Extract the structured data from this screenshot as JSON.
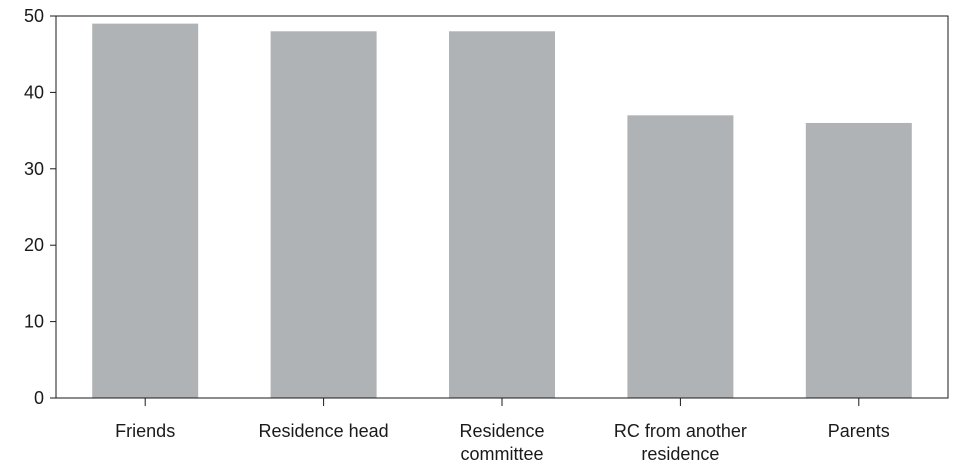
{
  "chart_data": {
    "type": "bar",
    "title": "",
    "xlabel": "",
    "ylabel": "",
    "ylim": [
      0,
      50
    ],
    "yticks": [
      0,
      10,
      20,
      30,
      40,
      50
    ],
    "grid": false,
    "categories": [
      [
        "Friends"
      ],
      [
        "Residence head"
      ],
      [
        "Residence",
        "committee"
      ],
      [
        "RC from another",
        "residence"
      ],
      [
        "Parents"
      ]
    ],
    "values": [
      49,
      48,
      48,
      37,
      36
    ],
    "colors": {
      "bar": "#b0b3b5",
      "axis": "#1a1a1a"
    }
  }
}
